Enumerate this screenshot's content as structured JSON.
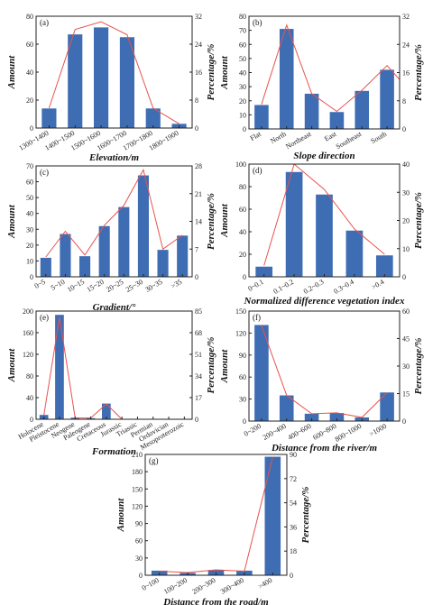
{
  "colors": {
    "bar": "#3f6db3",
    "line": "#e8524f",
    "axis": "#222222"
  },
  "chart_data": [
    {
      "type": "bar",
      "panel_label": "(a)",
      "categories": [
        "1300~1400",
        "1400~1500",
        "1500~1600",
        "1600~1700",
        "1700~1800",
        "1800~1900"
      ],
      "values": [
        14,
        67,
        72,
        65,
        14,
        3
      ],
      "line_values": [
        5.7,
        28.2,
        30.4,
        26.7,
        5.7,
        1.2
      ],
      "xlabel": "Elevation/m",
      "ylabel": "Amount",
      "y2label": "Percentage/%",
      "ylim": [
        0,
        80
      ],
      "yticks": [
        0,
        20,
        40,
        60,
        80
      ],
      "y2lim": [
        0,
        32
      ],
      "y2ticks": [
        0,
        8,
        16,
        24,
        32
      ]
    },
    {
      "type": "bar",
      "panel_label": "(b)",
      "categories": [
        "Flat",
        "North",
        "Northeast",
        "East",
        "Southeast",
        "South"
      ],
      "values": [
        17,
        71,
        25,
        12,
        27,
        42
      ],
      "line_values": [
        7,
        29.5,
        10,
        5,
        11,
        18,
        14
      ],
      "line_x_extended": true,
      "xlabel": "Slope direction",
      "ylabel": "Amount",
      "y2label": "Percentage/%",
      "ylim": [
        0,
        80
      ],
      "yticks": [
        0,
        10,
        20,
        30,
        40,
        50,
        60,
        70,
        80
      ],
      "y2lim": [
        0,
        32
      ],
      "y2ticks": [
        0,
        8,
        16,
        24,
        32
      ]
    },
    {
      "type": "bar",
      "panel_label": "(c)",
      "categories": [
        "0~5",
        "5~10",
        "10~15",
        "15~20",
        "20~25",
        "25~30",
        "30~35",
        ">35"
      ],
      "values": [
        12,
        27,
        13,
        32,
        44,
        64,
        17,
        26
      ],
      "line_values": [
        5,
        11.5,
        5.5,
        13,
        18,
        27,
        7,
        10.5
      ],
      "xlabel": "Gradient/°",
      "ylabel": "Amount",
      "y2label": "Percentage/%",
      "ylim": [
        0,
        70
      ],
      "yticks": [
        0,
        10,
        20,
        30,
        40,
        50,
        60,
        70
      ],
      "y2lim": [
        0,
        28
      ],
      "y2ticks": [
        0,
        7,
        14,
        21,
        28
      ]
    },
    {
      "type": "bar",
      "panel_label": "(d)",
      "categories": [
        "0~0.1",
        "0.1~0.2",
        "0.2~0.3",
        "0.3~0.4",
        ">0.4"
      ],
      "values": [
        9,
        93,
        73,
        41,
        19
      ],
      "line_values": [
        4,
        40,
        31,
        17,
        8
      ],
      "xlabel": "Normalized difference vegetation index",
      "ylabel": "Amount",
      "y2label": "Percentage/%",
      "ylim": [
        0,
        100
      ],
      "yticks": [
        0,
        20,
        40,
        60,
        80,
        100
      ],
      "y2lim": [
        0,
        40
      ],
      "y2ticks": [
        0,
        10,
        20,
        30,
        40
      ]
    },
    {
      "type": "bar",
      "panel_label": "(e)",
      "categories": [
        "Holocene",
        "Pleistocene",
        "Neogene",
        "Paleogene",
        "Cretaceous",
        "Jurassic",
        "Triassic",
        "Permian",
        "Ordovician",
        "Mesoproterozoic"
      ],
      "values": [
        8,
        193,
        3,
        2,
        29,
        0,
        0,
        0,
        0,
        0
      ],
      "line_values": [
        3,
        80,
        1,
        1,
        12,
        0,
        0,
        0,
        0,
        0
      ],
      "xlabel": "Formation",
      "ylabel": "Amount",
      "y2label": "Percentage/%",
      "ylim": [
        0,
        200
      ],
      "yticks": [
        0,
        40,
        80,
        120,
        160,
        200
      ],
      "y2lim": [
        0,
        85
      ],
      "y2ticks": [
        0,
        17,
        34,
        51,
        68,
        85
      ]
    },
    {
      "type": "bar",
      "panel_label": "(f)",
      "categories": [
        "0~200",
        "200~400",
        "400~600",
        "600~800",
        "800~1000",
        ">1000"
      ],
      "values": [
        131,
        35,
        10,
        11,
        5,
        39
      ],
      "line_values": [
        52,
        14,
        4,
        4.5,
        2,
        15.5
      ],
      "xlabel": "Distance from the river/m",
      "ylabel": "Amount",
      "y2label": "Percentage/%",
      "ylim": [
        0,
        150
      ],
      "yticks": [
        0,
        30,
        60,
        90,
        120,
        150
      ],
      "y2lim": [
        0,
        60
      ],
      "y2ticks": [
        0,
        15,
        30,
        45,
        60
      ]
    },
    {
      "type": "bar",
      "panel_label": "(g)",
      "categories": [
        "0~100",
        "100~200",
        "200~300",
        "300~400",
        ">400"
      ],
      "values": [
        8,
        4,
        9,
        8,
        206
      ],
      "line_values": [
        3,
        2,
        4,
        3,
        88
      ],
      "xlabel": "Distance from the road/m",
      "ylabel": "Amount",
      "y2label": "Percentage/%",
      "ylim": [
        0,
        210
      ],
      "yticks": [
        0,
        30,
        60,
        90,
        120,
        150,
        180,
        210
      ],
      "y2lim": [
        0,
        90
      ],
      "y2ticks": [
        0,
        18,
        36,
        54,
        72,
        90
      ]
    }
  ]
}
